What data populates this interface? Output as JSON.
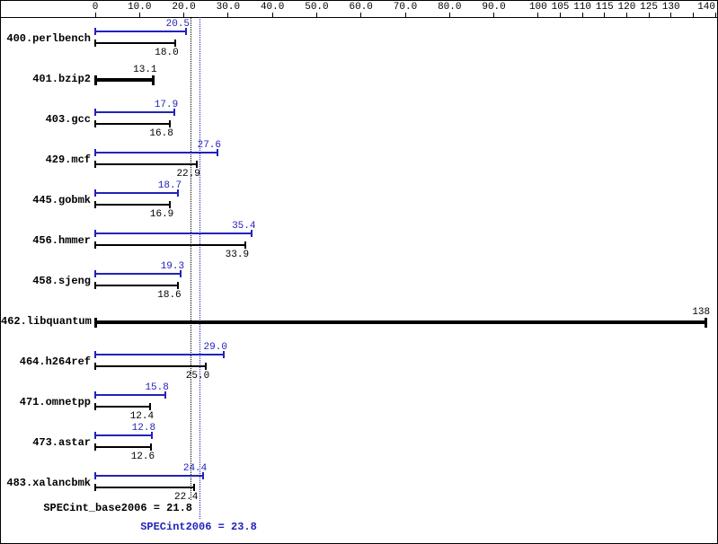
{
  "chart_data": {
    "type": "bar",
    "orientation": "horizontal",
    "description": "SPEC CPU2006 integer results chart: per-benchmark peak (blue) and base (black) ratio bars; single thick black bar when only one value shown",
    "axis": {
      "min": 0,
      "max": 140,
      "ticks": [
        {
          "value": 0,
          "label": "0"
        },
        {
          "value": 10,
          "label": "10.0"
        },
        {
          "value": 20,
          "label": "20.0"
        },
        {
          "value": 30,
          "label": "30.0"
        },
        {
          "value": 40,
          "label": "40.0"
        },
        {
          "value": 50,
          "label": "50.0"
        },
        {
          "value": 60,
          "label": "60.0"
        },
        {
          "value": 70,
          "label": "70.0"
        },
        {
          "value": 80,
          "label": "80.0"
        },
        {
          "value": 90,
          "label": "90.0"
        },
        {
          "value": 100,
          "label": "100"
        },
        {
          "value": 105,
          "label": "105"
        },
        {
          "value": 110,
          "label": "110"
        },
        {
          "value": 115,
          "label": "115"
        },
        {
          "value": 120,
          "label": "120"
        },
        {
          "value": 125,
          "label": "125"
        },
        {
          "value": 130,
          "label": "130"
        },
        {
          "value": 135,
          "label": ""
        },
        {
          "value": 140,
          "label": "140"
        }
      ]
    },
    "benchmarks": [
      {
        "name": "400.perlbench",
        "single": false,
        "peak": 20.5,
        "peak_label": "20.5",
        "base": 18.0,
        "base_label": "18.0"
      },
      {
        "name": "401.bzip2",
        "single": true,
        "peak": null,
        "peak_label": "",
        "base": 13.1,
        "base_label": "13.1"
      },
      {
        "name": "403.gcc",
        "single": false,
        "peak": 17.9,
        "peak_label": "17.9",
        "base": 16.8,
        "base_label": "16.8"
      },
      {
        "name": "429.mcf",
        "single": false,
        "peak": 27.6,
        "peak_label": "27.6",
        "base": 22.9,
        "base_label": "22.9"
      },
      {
        "name": "445.gobmk",
        "single": false,
        "peak": 18.7,
        "peak_label": "18.7",
        "base": 16.9,
        "base_label": "16.9"
      },
      {
        "name": "456.hmmer",
        "single": false,
        "peak": 35.4,
        "peak_label": "35.4",
        "base": 33.9,
        "base_label": "33.9"
      },
      {
        "name": "458.sjeng",
        "single": false,
        "peak": 19.3,
        "peak_label": "19.3",
        "base": 18.6,
        "base_label": "18.6"
      },
      {
        "name": "462.libquantum",
        "single": true,
        "peak": null,
        "peak_label": "",
        "base": 138,
        "base_label": "138"
      },
      {
        "name": "464.h264ref",
        "single": false,
        "peak": 29.0,
        "peak_label": "29.0",
        "base": 25.0,
        "base_label": "25.0"
      },
      {
        "name": "471.omnetpp",
        "single": false,
        "peak": 15.8,
        "peak_label": "15.8",
        "base": 12.4,
        "base_label": "12.4"
      },
      {
        "name": "473.astar",
        "single": false,
        "peak": 12.8,
        "peak_label": "12.8",
        "base": 12.6,
        "base_label": "12.6"
      },
      {
        "name": "483.xalancbmk",
        "single": false,
        "peak": 24.4,
        "peak_label": "24.4",
        "base": 22.4,
        "base_label": "22.4"
      }
    ],
    "means": {
      "base": {
        "value": 21.8,
        "label": "SPECint_base2006 = 21.8"
      },
      "peak": {
        "value": 23.8,
        "label": "SPECint2006 = 23.8"
      }
    },
    "colors": {
      "peak": "#2222bb",
      "base": "#000000"
    }
  }
}
